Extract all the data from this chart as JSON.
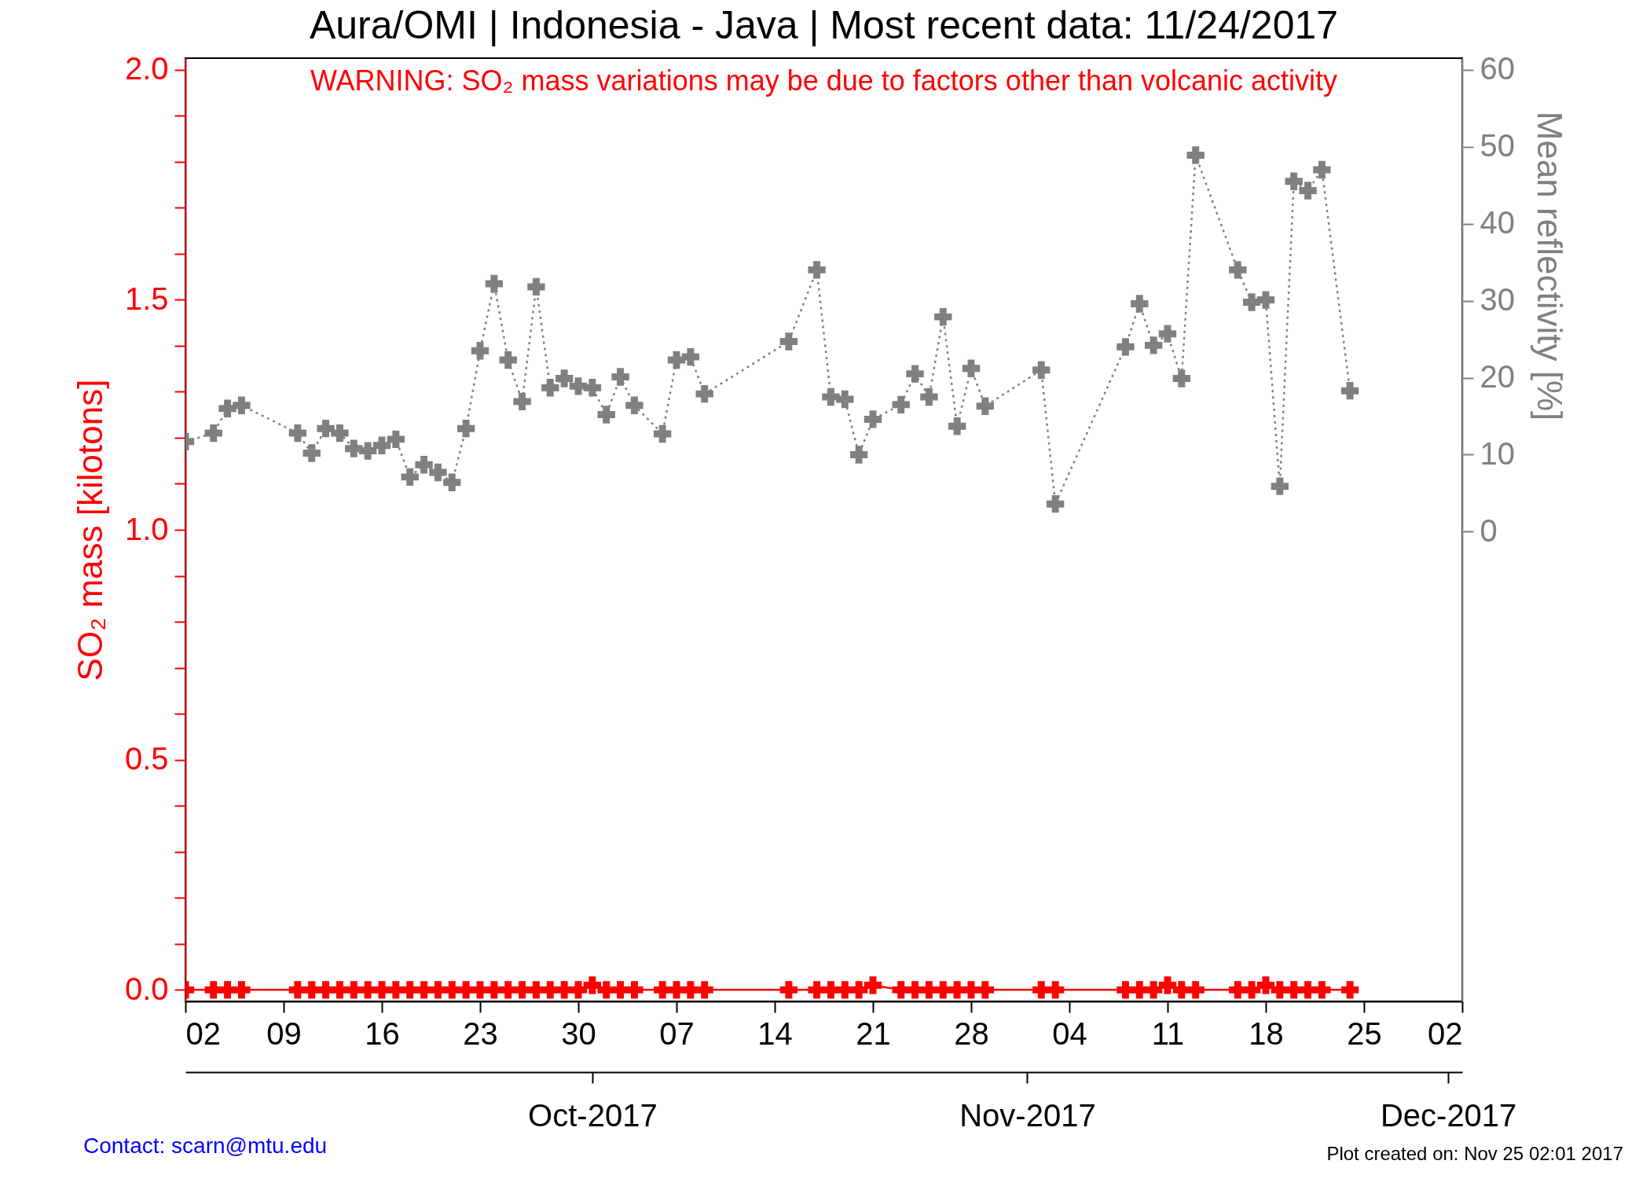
{
  "chart_data": {
    "type": "line",
    "title": "Aura/OMI | Indonesia - Java | Most recent data: 11/24/2017",
    "ylabel": "SO₂ mass [kilotons]",
    "y2label": "Mean reflectivity [%]",
    "annotations": [
      "WARNING: SO₂ mass variations may be due to factors other than volcanic activity",
      "Contact: scarn@mtu.edu",
      "Plot created on: Nov 25 02:01 2017"
    ],
    "x": [
      "2017-09-02",
      "2017-09-04",
      "2017-09-05",
      "2017-09-06",
      "2017-09-10",
      "2017-09-11",
      "2017-09-12",
      "2017-09-13",
      "2017-09-14",
      "2017-09-15",
      "2017-09-16",
      "2017-09-17",
      "2017-09-18",
      "2017-09-19",
      "2017-09-20",
      "2017-09-21",
      "2017-09-22",
      "2017-09-23",
      "2017-09-24",
      "2017-09-25",
      "2017-09-26",
      "2017-09-27",
      "2017-09-28",
      "2017-09-29",
      "2017-09-30",
      "2017-10-01",
      "2017-10-02",
      "2017-10-03",
      "2017-10-04",
      "2017-10-06",
      "2017-10-07",
      "2017-10-08",
      "2017-10-09",
      "2017-10-15",
      "2017-10-17",
      "2017-10-18",
      "2017-10-19",
      "2017-10-20",
      "2017-10-21",
      "2017-10-23",
      "2017-10-24",
      "2017-10-25",
      "2017-10-26",
      "2017-10-27",
      "2017-10-28",
      "2017-10-29",
      "2017-11-02",
      "2017-11-03",
      "2017-11-08",
      "2017-11-09",
      "2017-11-10",
      "2017-11-11",
      "2017-11-12",
      "2017-11-13",
      "2017-11-16",
      "2017-11-17",
      "2017-11-18",
      "2017-11-19",
      "2017-11-20",
      "2017-11-21",
      "2017-11-22",
      "2017-11-24"
    ],
    "series": [
      {
        "color": "#ff0000",
        "line_style": "solid",
        "values": [
          0,
          0,
          0,
          0,
          0,
          0,
          0,
          0,
          0,
          0,
          0,
          0,
          0,
          0,
          0,
          0,
          0,
          0,
          0,
          0,
          0,
          0,
          0,
          0,
          0,
          0.01,
          0,
          0,
          0,
          0,
          0,
          0,
          0,
          0,
          0,
          0,
          0,
          0,
          0.01,
          0,
          0,
          0,
          0,
          0,
          0,
          0,
          0,
          0,
          0,
          0,
          0,
          0.01,
          0,
          0,
          0,
          0,
          0.01,
          0,
          0,
          0,
          0,
          0
        ]
      },
      {
        "color": "#808080",
        "line_style": "dotted",
        "axis": "y2",
        "values": [
          11.7,
          12.8,
          16.0,
          16.4,
          12.8,
          10.2,
          13.4,
          12.8,
          10.8,
          10.5,
          11.2,
          12.0,
          7.1,
          8.7,
          7.7,
          6.4,
          13.4,
          23.5,
          32.2,
          22.3,
          16.9,
          31.8,
          18.7,
          19.9,
          18.9,
          18.7,
          15.2,
          20.1,
          16.4,
          12.7,
          22.3,
          22.7,
          17.9,
          24.7,
          34.0,
          17.5,
          17.2,
          10.0,
          14.6,
          16.5,
          20.5,
          17.5,
          27.9,
          13.7,
          21.2,
          16.3,
          21.0,
          3.6,
          24.0,
          29.6,
          24.2,
          25.7,
          19.9,
          48.9,
          34.0,
          29.8,
          30.1,
          5.9,
          45.5,
          44.3,
          47.0,
          18.3
        ]
      }
    ],
    "xlim": [
      "2017-09-02",
      "2017-12-02"
    ],
    "xticks": [
      {
        "value": "2017-09-02",
        "label": "02"
      },
      {
        "value": "2017-09-09",
        "label": "09"
      },
      {
        "value": "2017-09-16",
        "label": "16"
      },
      {
        "value": "2017-09-23",
        "label": "23"
      },
      {
        "value": "2017-09-30",
        "label": "30"
      },
      {
        "value": "2017-10-07",
        "label": "07"
      },
      {
        "value": "2017-10-14",
        "label": "14"
      },
      {
        "value": "2017-10-21",
        "label": "21"
      },
      {
        "value": "2017-10-28",
        "label": "28"
      },
      {
        "value": "2017-11-04",
        "label": "04"
      },
      {
        "value": "2017-11-11",
        "label": "11"
      },
      {
        "value": "2017-11-18",
        "label": "18"
      },
      {
        "value": "2017-11-25",
        "label": "25"
      },
      {
        "value": "2017-12-02",
        "label": "02"
      }
    ],
    "x2lim": [
      "2017-09-02",
      "2017-12-02"
    ],
    "x2ticks": [
      {
        "value": "2017-10-01",
        "label": "Oct-2017"
      },
      {
        "value": "2017-11-01",
        "label": "Nov-2017"
      },
      {
        "value": "2017-12-01",
        "label": "Dec-2017"
      }
    ],
    "ylim": [
      -0.025,
      2.025
    ],
    "yticks": [
      {
        "value": 0,
        "label": "0.0"
      },
      {
        "value": 0.1,
        "label": null
      },
      {
        "value": 0.2,
        "label": null
      },
      {
        "value": 0.3,
        "label": null
      },
      {
        "value": 0.4,
        "label": null
      },
      0.5,
      {
        "value": 0.6,
        "label": null
      },
      {
        "value": 0.7,
        "label": null
      },
      {
        "value": 0.8,
        "label": null
      },
      {
        "value": 0.9,
        "label": null
      },
      {
        "value": 1,
        "label": "1.0"
      },
      {
        "value": 1.1,
        "label": null
      },
      {
        "value": 1.2,
        "label": null
      },
      {
        "value": 1.3,
        "label": null
      },
      {
        "value": 1.4,
        "label": null
      },
      1.5,
      {
        "value": 1.6,
        "label": null
      },
      {
        "value": 1.7,
        "label": null
      },
      {
        "value": 1.8,
        "label": null
      },
      {
        "value": 1.9,
        "label": null
      },
      {
        "value": 2,
        "label": "2.0"
      }
    ],
    "y2lim": [
      -61,
      61.5
    ],
    "y2ticks": [
      0,
      10,
      20,
      30,
      40,
      50,
      60
    ],
    "marker": "cross",
    "grid": false,
    "legend": false
  }
}
